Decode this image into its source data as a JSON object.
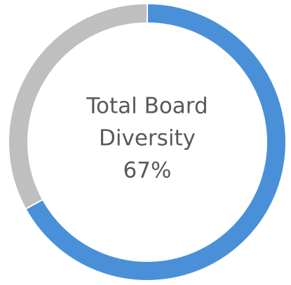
{
  "chart_data": {
    "type": "donut",
    "values": [
      67,
      33
    ],
    "colors": [
      "#4a90d9",
      "#bfbfbf"
    ],
    "center_lines": [
      "Total Board",
      "Diversity"
    ],
    "center_value": {
      "value": 67,
      "label": "67%"
    }
  }
}
